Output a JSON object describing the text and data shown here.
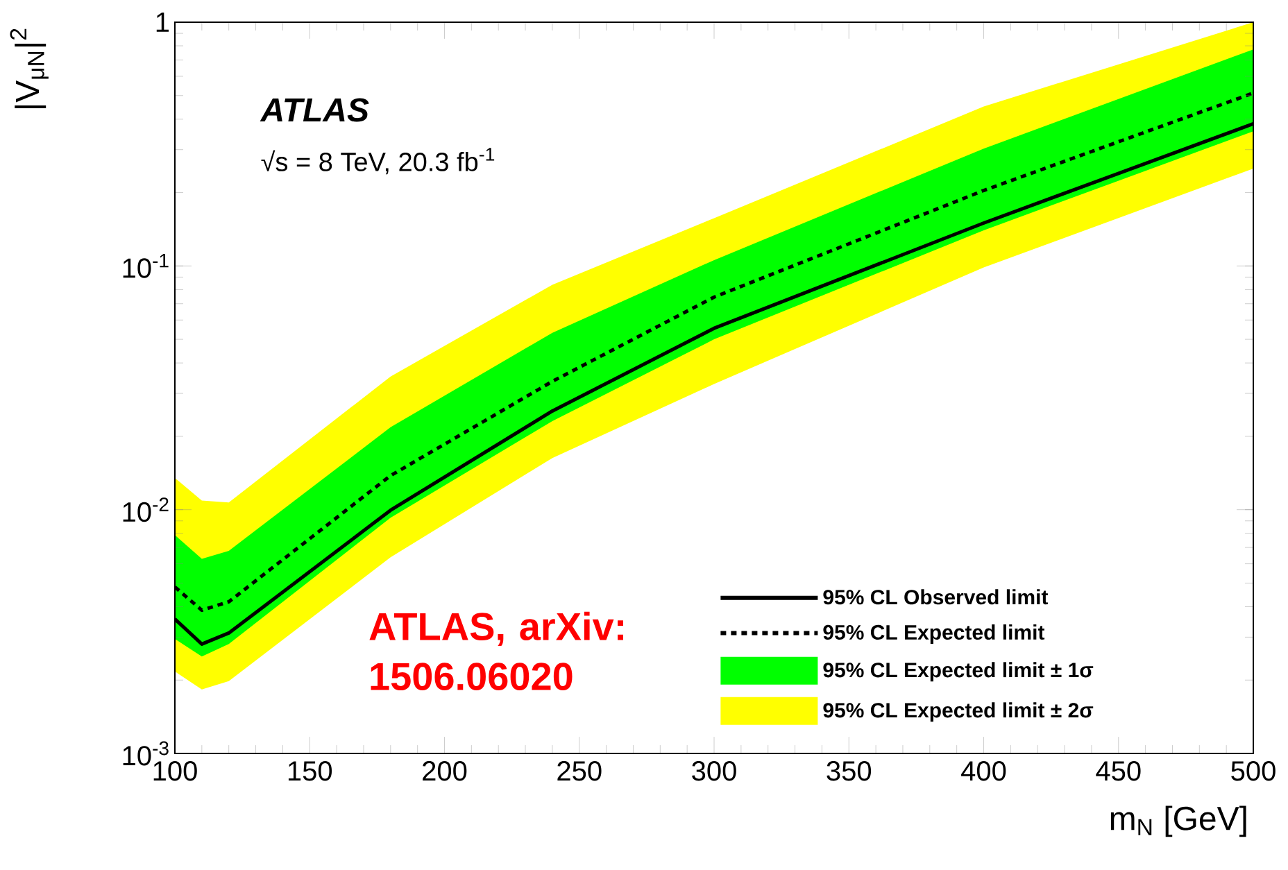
{
  "chart_data": {
    "type": "line",
    "xlabel": "m$_{N}$ [GeV]",
    "ylabel": "|V$_{μN}$|$^{2}$",
    "x": [
      100,
      110,
      120,
      180,
      240,
      300,
      400,
      500
    ],
    "series": [
      {
        "name": "95% CL Observed limit",
        "color": "#000000",
        "line_style": "solid",
        "values": [
          0.00356,
          0.00281,
          0.00312,
          0.00995,
          0.0254,
          0.0555,
          0.15,
          0.383
        ]
      },
      {
        "name": "95% CL Expected limit",
        "color": "#000000",
        "line_style": "dashed",
        "values": [
          0.00482,
          0.00387,
          0.00419,
          0.0138,
          0.0336,
          0.0745,
          0.204,
          0.512
        ]
      },
      {
        "name": "95% CL Expected limit ± 1σ",
        "type": "area",
        "color": "#00ff00",
        "values": [
          null,
          null,
          null,
          null,
          null,
          null,
          null,
          null
        ],
        "lower": [
          0.00295,
          0.0025,
          0.00281,
          0.00927,
          0.0231,
          0.05,
          0.14,
          0.357
        ],
        "upper": [
          0.00787,
          0.00629,
          0.00678,
          0.0218,
          0.0532,
          0.1057,
          0.303,
          0.773
        ]
      },
      {
        "name": "95% CL Expected limit ± 2σ",
        "type": "area",
        "color": "#ffff00",
        "values": [
          null,
          null,
          null,
          null,
          null,
          null,
          null,
          null
        ],
        "lower": [
          0.00217,
          0.00183,
          0.00198,
          0.00638,
          0.0163,
          0.0328,
          0.0986,
          0.251
        ],
        "upper": [
          0.0135,
          0.0109,
          0.0107,
          0.0352,
          0.0837,
          0.157,
          0.451,
          1.0
        ]
      }
    ],
    "xlim": [
      100,
      500
    ],
    "ylim": [
      0.001,
      1
    ],
    "log": "y",
    "xticks": [
      100,
      150,
      200,
      250,
      300,
      350,
      400,
      450,
      500
    ],
    "yticks": [
      {
        "value": 0.001,
        "label": "10$^{-3}$"
      },
      {
        "value": 0.01,
        "label": "10$^{-2}$"
      },
      {
        "value": 0.1,
        "label": "10$^{-1}$"
      },
      1
    ],
    "legend": "bottom right",
    "annotations": [
      "ATLAS",
      "√s = 8 TeV, 20.3 fb$^{-1}$",
      "ATLAS, arXiv: 1506.06020"
    ]
  }
}
